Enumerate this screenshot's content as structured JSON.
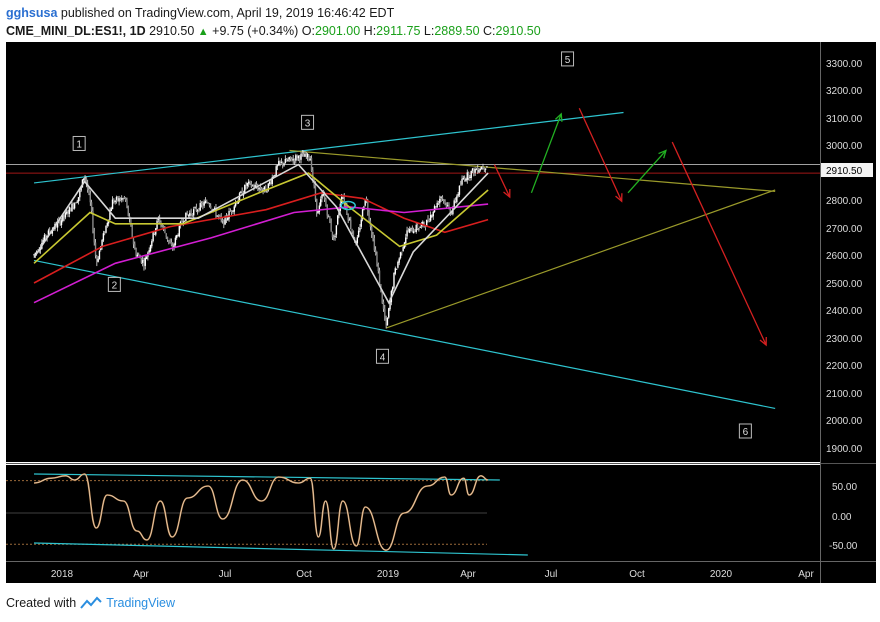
{
  "header": {
    "author": "gghsusa",
    "published_text": "published on TradingView.com, April 19, 2019 16:46:42 EDT",
    "symbol": "CME_MINI_DL:ES1!, 1D",
    "last": "2910.50",
    "change": "+9.75 (+0.34%)",
    "o_label": "O:",
    "o_value": "2901.00",
    "h_label": "H:",
    "h_value": "2911.75",
    "l_label": "L:",
    "l_value": "2889.50",
    "c_label": "C:",
    "c_value": "2910.50"
  },
  "footer": {
    "created_with": "Created with",
    "brand": "TradingView"
  },
  "colors": {
    "background": "#000000",
    "up": "#1aa01a",
    "channel": "#2ec4cf",
    "olive": "#9a9a2a",
    "ma_red": "#d81e1e",
    "ma_magenta": "#d21ed2",
    "ma_yellow": "#c8c832",
    "ma_white": "#d8d8d8",
    "arrow_red": "#d42020",
    "arrow_green": "#22b022",
    "osc": "#c8925a"
  },
  "chart_data": [
    {
      "type": "candlestick",
      "title": "CME_MINI_DL:ES1!, 1D",
      "x_ticks": [
        "2018",
        "Apr",
        "Jul",
        "Oct",
        "2019",
        "Apr",
        "Jul",
        "Oct",
        "2020",
        "Apr"
      ],
      "x_tick_dates": [
        "2018-01-01",
        "2018-04-01",
        "2018-07-01",
        "2018-10-01",
        "2019-01-01",
        "2019-04-01",
        "2019-07-01",
        "2019-10-01",
        "2020-01-01",
        "2020-04-01"
      ],
      "y_ticks": [
        "3300.00",
        "3200.00",
        "3100.00",
        "3000.00",
        "2900.00",
        "2800.00",
        "2700.00",
        "2600.00",
        "2500.00",
        "2400.00",
        "2300.00",
        "2200.00",
        "2100.00",
        "2000.00",
        "1900.00"
      ],
      "y_range": [
        1855,
        3345
      ],
      "last_price_label": "2910.50",
      "price_path": [
        [
          "2017-12-01",
          2590
        ],
        [
          "2017-12-15",
          2660
        ],
        [
          "2018-01-05",
          2730
        ],
        [
          "2018-01-20",
          2800
        ],
        [
          "2018-01-26",
          2878
        ],
        [
          "2018-02-02",
          2760
        ],
        [
          "2018-02-08",
          2560
        ],
        [
          "2018-02-26",
          2780
        ],
        [
          "2018-03-12",
          2790
        ],
        [
          "2018-03-23",
          2600
        ],
        [
          "2018-04-02",
          2560
        ],
        [
          "2018-04-18",
          2720
        ],
        [
          "2018-05-03",
          2610
        ],
        [
          "2018-05-15",
          2720
        ],
        [
          "2018-06-12",
          2780
        ],
        [
          "2018-06-28",
          2700
        ],
        [
          "2018-07-25",
          2840
        ],
        [
          "2018-08-15",
          2820
        ],
        [
          "2018-08-29",
          2910
        ],
        [
          "2018-09-21",
          2940
        ],
        [
          "2018-10-03",
          2935
        ],
        [
          "2018-10-11",
          2730
        ],
        [
          "2018-10-17",
          2810
        ],
        [
          "2018-10-29",
          2640
        ],
        [
          "2018-11-07",
          2810
        ],
        [
          "2018-11-23",
          2620
        ],
        [
          "2018-12-03",
          2800
        ],
        [
          "2018-12-14",
          2600
        ],
        [
          "2018-12-26",
          2330
        ],
        [
          "2019-01-04",
          2520
        ],
        [
          "2019-01-18",
          2670
        ],
        [
          "2019-02-08",
          2700
        ],
        [
          "2019-02-25",
          2800
        ],
        [
          "2019-03-08",
          2740
        ],
        [
          "2019-03-21",
          2860
        ],
        [
          "2019-04-05",
          2895
        ],
        [
          "2019-04-18",
          2910
        ]
      ],
      "moving_averages": [
        {
          "color": "ma_red",
          "points": [
            [
              "2017-12-01",
              2490
            ],
            [
              "2018-02-15",
              2620
            ],
            [
              "2018-05-01",
              2690
            ],
            [
              "2018-08-15",
              2750
            ],
            [
              "2018-10-15",
              2810
            ],
            [
              "2018-11-30",
              2790
            ],
            [
              "2019-01-15",
              2720
            ],
            [
              "2019-03-01",
              2670
            ],
            [
              "2019-04-18",
              2715
            ]
          ]
        },
        {
          "color": "ma_magenta",
          "points": [
            [
              "2017-12-01",
              2420
            ],
            [
              "2018-03-01",
              2560
            ],
            [
              "2018-06-15",
              2650
            ],
            [
              "2018-09-15",
              2740
            ],
            [
              "2018-11-15",
              2760
            ],
            [
              "2019-01-15",
              2740
            ],
            [
              "2019-04-18",
              2770
            ]
          ]
        },
        {
          "color": "ma_yellow",
          "points": [
            [
              "2017-12-01",
              2560
            ],
            [
              "2018-02-01",
              2740
            ],
            [
              "2018-03-01",
              2700
            ],
            [
              "2018-05-15",
              2700
            ],
            [
              "2018-08-15",
              2820
            ],
            [
              "2018-10-01",
              2880
            ],
            [
              "2018-11-15",
              2760
            ],
            [
              "2019-01-10",
              2620
            ],
            [
              "2019-02-20",
              2660
            ],
            [
              "2019-04-18",
              2820
            ]
          ]
        },
        {
          "color": "ma_white",
          "points": [
            [
              "2017-12-01",
              2580
            ],
            [
              "2018-01-26",
              2850
            ],
            [
              "2018-03-01",
              2720
            ],
            [
              "2018-06-01",
              2720
            ],
            [
              "2018-09-20",
              2910
            ],
            [
              "2018-11-01",
              2760
            ],
            [
              "2018-12-29",
              2420
            ],
            [
              "2019-01-25",
              2600
            ],
            [
              "2019-04-18",
              2880
            ]
          ]
        }
      ],
      "trendlines": [
        {
          "color": "channel",
          "from": [
            "2017-12-01",
            2845
          ],
          "to": [
            "2019-09-15",
            3095
          ]
        },
        {
          "color": "channel",
          "from": [
            "2017-12-01",
            2570
          ],
          "to": [
            "2020-03-01",
            2045
          ]
        },
        {
          "color": "olive",
          "from": [
            "2018-09-10",
            2960
          ],
          "to": [
            "2020-03-01",
            2815
          ]
        },
        {
          "color": "olive",
          "from": [
            "2018-12-26",
            2330
          ],
          "to": [
            "2020-03-01",
            2820
          ]
        }
      ],
      "horizontal_lines": [
        {
          "color": "ma_red",
          "y": 2880
        },
        {
          "color": "ma_white",
          "y": 2910.5
        }
      ],
      "arrows": [
        {
          "color": "arrow_red",
          "from": [
            "2019-04-25",
            2910
          ],
          "to": [
            "2019-05-12",
            2795
          ]
        },
        {
          "color": "arrow_green",
          "from": [
            "2019-06-05",
            2810
          ],
          "to": [
            "2019-07-08",
            3090
          ]
        },
        {
          "color": "arrow_red",
          "from": [
            "2019-07-28",
            3110
          ],
          "to": [
            "2019-09-13",
            2780
          ]
        },
        {
          "color": "arrow_green",
          "from": [
            "2019-09-20",
            2810
          ],
          "to": [
            "2019-11-01",
            2960
          ]
        },
        {
          "color": "arrow_red",
          "from": [
            "2019-11-08",
            2990
          ],
          "to": [
            "2020-02-20",
            2270
          ]
        }
      ],
      "wave_labels": [
        {
          "text": "1",
          "date": "2018-01-20",
          "y": 2985
        },
        {
          "text": "2",
          "date": "2018-02-28",
          "y": 2485
        },
        {
          "text": "3",
          "date": "2018-09-30",
          "y": 3060
        },
        {
          "text": "4",
          "date": "2018-12-22",
          "y": 2230
        },
        {
          "text": "5",
          "date": "2019-07-15",
          "y": 3285
        },
        {
          "text": "6",
          "date": "2020-01-28",
          "y": 1965
        }
      ]
    },
    {
      "type": "line",
      "y_ticks": [
        "50.00",
        "0.00",
        "-50.00"
      ],
      "y_range": [
        -80,
        80
      ],
      "levels": [
        54,
        -52
      ],
      "series_points": [
        [
          "2017-12-01",
          50
        ],
        [
          "2017-12-20",
          58
        ],
        [
          "2018-01-05",
          62
        ],
        [
          "2018-01-15",
          55
        ],
        [
          "2018-01-26",
          65
        ],
        [
          "2018-02-08",
          -25
        ],
        [
          "2018-02-20",
          30
        ],
        [
          "2018-03-10",
          20
        ],
        [
          "2018-03-25",
          -30
        ],
        [
          "2018-04-05",
          -45
        ],
        [
          "2018-04-20",
          20
        ],
        [
          "2018-05-03",
          -40
        ],
        [
          "2018-05-20",
          25
        ],
        [
          "2018-06-12",
          45
        ],
        [
          "2018-06-28",
          -10
        ],
        [
          "2018-07-20",
          55
        ],
        [
          "2018-08-10",
          20
        ],
        [
          "2018-08-29",
          60
        ],
        [
          "2018-09-20",
          50
        ],
        [
          "2018-10-03",
          58
        ],
        [
          "2018-10-12",
          -40
        ],
        [
          "2018-10-20",
          20
        ],
        [
          "2018-10-29",
          -60
        ],
        [
          "2018-11-08",
          20
        ],
        [
          "2018-11-23",
          -55
        ],
        [
          "2018-12-03",
          10
        ],
        [
          "2018-12-26",
          -62
        ],
        [
          "2019-01-15",
          0
        ],
        [
          "2019-02-10",
          45
        ],
        [
          "2019-03-01",
          60
        ],
        [
          "2019-03-08",
          30
        ],
        [
          "2019-03-22",
          58
        ],
        [
          "2019-03-28",
          30
        ],
        [
          "2019-04-10",
          62
        ],
        [
          "2019-04-18",
          55
        ]
      ],
      "trendlines": [
        {
          "from": [
            "2017-12-01",
            65
          ],
          "to": [
            "2019-05-01",
            55
          ]
        },
        {
          "from": [
            "2017-12-01",
            -50
          ],
          "to": [
            "2019-06-01",
            -70
          ]
        }
      ]
    }
  ]
}
